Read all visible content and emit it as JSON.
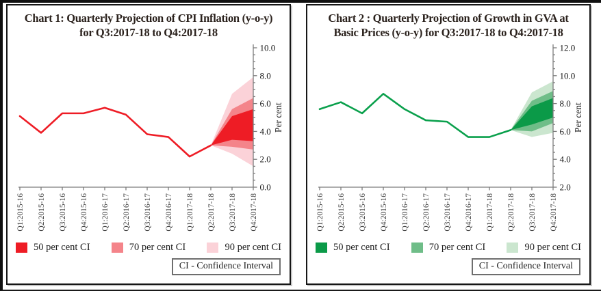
{
  "chart_data": [
    {
      "type": "line",
      "name": "cpi-inflation-fan-chart",
      "title_line1": "Chart 1:  Quarterly Projection of CPI Inflation (y-o-y)",
      "title_line2": "for Q3:2017-18 to Q4:2017-18",
      "ylabel": "Per cent",
      "axis": {
        "min": 0,
        "max": 10,
        "ticks": [
          "0.0",
          "2.0",
          "4.0",
          "6.0",
          "8.0",
          "10.0"
        ]
      },
      "categories": [
        "Q1:2015-16",
        "Q2:2015-16",
        "Q3:2015-16",
        "Q4:2015-16",
        "Q1:2016-17",
        "Q2:2016-17",
        "Q3:2016-17",
        "Q4:2016-17",
        "Q1:2017-18",
        "Q2:2017-18",
        "Q3:2017-18",
        "Q4:2017-18"
      ],
      "line": [
        5.1,
        3.9,
        5.3,
        5.3,
        5.7,
        5.2,
        3.8,
        3.6,
        2.2,
        3.0
      ],
      "line_color": "#ee1c25",
      "fan": {
        "start_index": 9,
        "bands": [
          {
            "name": "90 per cent CI",
            "color": "#fbd2d8",
            "lower": [
              3.0,
              2.4,
              1.5
            ],
            "upper": [
              3.0,
              6.7,
              7.9
            ]
          },
          {
            "name": "70 per cent CI",
            "color": "#f4848a",
            "lower": [
              3.0,
              2.9,
              2.7
            ],
            "upper": [
              3.0,
              5.6,
              6.4
            ]
          },
          {
            "name": "50 per cent CI",
            "color": "#ee1c25",
            "lower": [
              3.0,
              3.4,
              3.3
            ],
            "upper": [
              3.0,
              5.1,
              5.6
            ]
          }
        ]
      },
      "legend": [
        {
          "label": "50 per cent CI",
          "color": "#ee1c25"
        },
        {
          "label": "70 per cent CI",
          "color": "#f4848a"
        },
        {
          "label": "90 per cent CI",
          "color": "#fbd2d8"
        }
      ],
      "ci_note": "CI - Confidence Interval"
    },
    {
      "type": "line",
      "name": "gva-growth-fan-chart",
      "title_line1": "Chart 2 : Quarterly Projection of Growth in GVA at",
      "title_line2": "Basic Prices (y-o-y) for Q3:2017-18 to Q4:2017-18",
      "ylabel": "Per cent",
      "axis": {
        "min": 2,
        "max": 12,
        "ticks": [
          "2.0",
          "4.0",
          "6.0",
          "8.0",
          "10.0",
          "12.0"
        ]
      },
      "categories": [
        "Q1:2015-16",
        "Q2:2015-16",
        "Q3:2015-16",
        "Q4:2015-16",
        "Q1:2016-17",
        "Q2:2016-17",
        "Q3:2016-17",
        "Q4:2016-17",
        "Q1:2017-18",
        "Q2:2017-18",
        "Q3:2017-18",
        "Q4:2017-18"
      ],
      "line": [
        7.6,
        8.1,
        7.3,
        8.7,
        7.6,
        6.8,
        6.7,
        5.6,
        5.6,
        6.1
      ],
      "line_color": "#0aa04c",
      "fan": {
        "start_index": 9,
        "bands": [
          {
            "name": "90 per cent CI",
            "color": "#cbe6cf",
            "lower": [
              6.1,
              5.6,
              5.9
            ],
            "upper": [
              6.1,
              8.8,
              9.6
            ]
          },
          {
            "name": "70 per cent CI",
            "color": "#6fbd88",
            "lower": [
              6.1,
              6.0,
              6.6
            ],
            "upper": [
              6.1,
              8.2,
              8.9
            ]
          },
          {
            "name": "50 per cent CI",
            "color": "#0b9a48",
            "lower": [
              6.1,
              6.5,
              7.0
            ],
            "upper": [
              6.1,
              7.8,
              8.4
            ]
          }
        ]
      },
      "legend": [
        {
          "label": "50 per cent CI",
          "color": "#0b9a48"
        },
        {
          "label": "70 per cent CI",
          "color": "#6fbd88"
        },
        {
          "label": "90 per cent CI",
          "color": "#cbe6cf"
        }
      ],
      "ci_note": "CI - Confidence Interval"
    }
  ]
}
